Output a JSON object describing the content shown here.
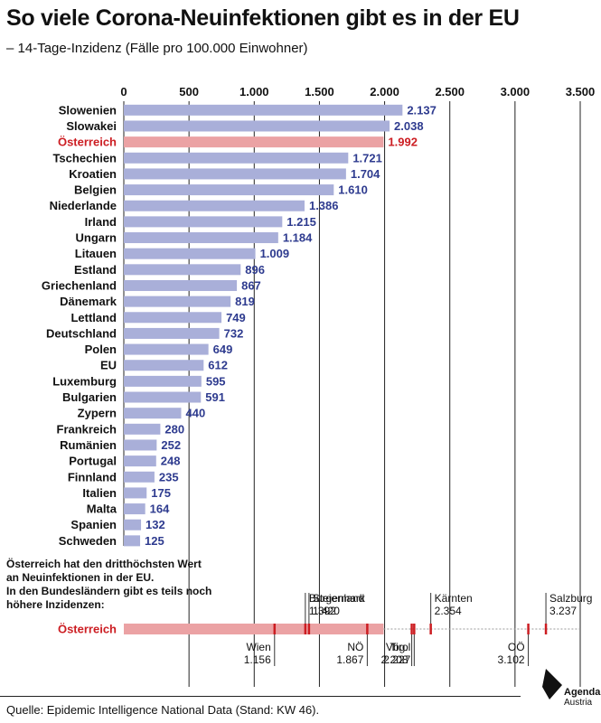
{
  "title": "So viele Corona-Neuinfektionen gibt es in der EU",
  "subtitle": "– 14-Tage-Inzidenz (Fälle pro 100.000 Einwohner)",
  "source": "Quelle: Epidemic Intelligence National Data (Stand: KW 46).",
  "note_lines": [
    "Österreich hat den dritthöchsten Wert",
    "an Neuinfektionen in der EU.",
    "In den Bundesländern gibt es teils noch",
    "höhere Inzidenzen:"
  ],
  "logo": {
    "name": "Agenda",
    "sub": "Austria"
  },
  "colors": {
    "bar": "#a9afd9",
    "highlight_bar": "#eba2a4",
    "highlight_text": "#cc1d22",
    "value_text": "#2e3b8f",
    "grid": "#222222",
    "state_marker": "#cc1d22"
  },
  "chart_data": [
    {
      "type": "bar",
      "orientation": "horizontal",
      "xlim": [
        0,
        3500
      ],
      "ticks": [
        0,
        500,
        1000,
        1500,
        2000,
        2500,
        3000,
        3500
      ],
      "tick_labels": [
        "0",
        "500",
        "1.000",
        "1.500",
        "2.000",
        "2.500",
        "3.000",
        "3.500"
      ],
      "grid": true,
      "highlight": "Österreich",
      "categories": [
        "Slowenien",
        "Slowakei",
        "Österreich",
        "Tschechien",
        "Kroatien",
        "Belgien",
        "Niederlande",
        "Irland",
        "Ungarn",
        "Litauen",
        "Estland",
        "Griechenland",
        "Dänemark",
        "Lettland",
        "Deutschland",
        "Polen",
        "EU",
        "Luxemburg",
        "Bulgarien",
        "Zypern",
        "Frankreich",
        "Rumänien",
        "Portugal",
        "Finnland",
        "Italien",
        "Malta",
        "Spanien",
        "Schweden"
      ],
      "values": [
        2137,
        2038,
        1992,
        1721,
        1704,
        1610,
        1386,
        1215,
        1184,
        1009,
        896,
        867,
        819,
        749,
        732,
        649,
        612,
        595,
        591,
        440,
        280,
        252,
        248,
        235,
        175,
        164,
        132,
        125
      ],
      "value_labels": [
        "2.137",
        "2.038",
        "1.992",
        "1.721",
        "1.704",
        "1.610",
        "1.386",
        "1.215",
        "1.184",
        "1.009",
        "896",
        "867",
        "819",
        "749",
        "732",
        "649",
        "612",
        "595",
        "591",
        "440",
        "280",
        "252",
        "248",
        "235",
        "175",
        "164",
        "132",
        "125"
      ]
    },
    {
      "type": "bar",
      "orientation": "horizontal",
      "label": "Österreich",
      "value": 1992,
      "xlim": [
        0,
        3500
      ],
      "states": [
        {
          "name": "Wien",
          "value": 1156,
          "value_label": "1.156",
          "side": "below"
        },
        {
          "name": "Burgenland",
          "value": 1392,
          "value_label": "1.392",
          "side": "above"
        },
        {
          "name": "Steiermark",
          "value": 1420,
          "value_label": "1.420",
          "side": "above"
        },
        {
          "name": "NÖ",
          "value": 1867,
          "value_label": "1.867",
          "side": "below"
        },
        {
          "name": "Vbg.",
          "value": 2208,
          "value_label": "2.208",
          "side": "below"
        },
        {
          "name": "Tirol",
          "value": 2227,
          "value_label": "2.227",
          "side": "below"
        },
        {
          "name": "Kärnten",
          "value": 2354,
          "value_label": "2.354",
          "side": "above"
        },
        {
          "name": "OÖ",
          "value": 3102,
          "value_label": "3.102",
          "side": "below"
        },
        {
          "name": "Salzburg",
          "value": 3237,
          "value_label": "3.237",
          "side": "above"
        }
      ]
    }
  ]
}
